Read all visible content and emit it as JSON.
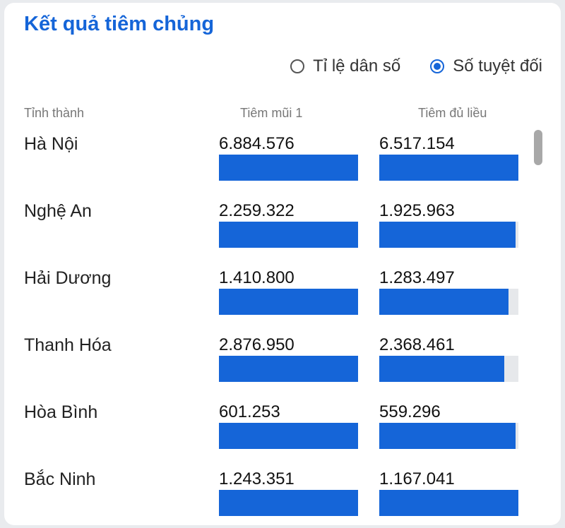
{
  "title": "Kết quả tiêm chủng",
  "mode": {
    "options": [
      {
        "label": "Tỉ lệ dân số",
        "checked": false
      },
      {
        "label": "Số tuyệt đối",
        "checked": true
      }
    ]
  },
  "columns": {
    "province": "Tỉnh thành",
    "dose1": "Tiêm mũi 1",
    "full": "Tiêm đủ liều"
  },
  "accent_color": "#1565d8",
  "rows": [
    {
      "province": "Hà Nội",
      "dose1": "6.884.576",
      "full": "6.517.154",
      "dose1_fill": 1.0,
      "full_fill": 1.0
    },
    {
      "province": "Nghệ An",
      "dose1": "2.259.322",
      "full": "1.925.963",
      "dose1_fill": 1.0,
      "full_fill": 0.98
    },
    {
      "province": "Hải Dương",
      "dose1": "1.410.800",
      "full": "1.283.497",
      "dose1_fill": 1.0,
      "full_fill": 0.93
    },
    {
      "province": "Thanh Hóa",
      "dose1": "2.876.950",
      "full": "2.368.461",
      "dose1_fill": 1.0,
      "full_fill": 0.9
    },
    {
      "province": "Hòa Bình",
      "dose1": "601.253",
      "full": "559.296",
      "dose1_fill": 1.0,
      "full_fill": 0.98
    },
    {
      "province": "Bắc Ninh",
      "dose1": "1.243.351",
      "full": "1.167.041",
      "dose1_fill": 1.0,
      "full_fill": 1.0
    }
  ]
}
